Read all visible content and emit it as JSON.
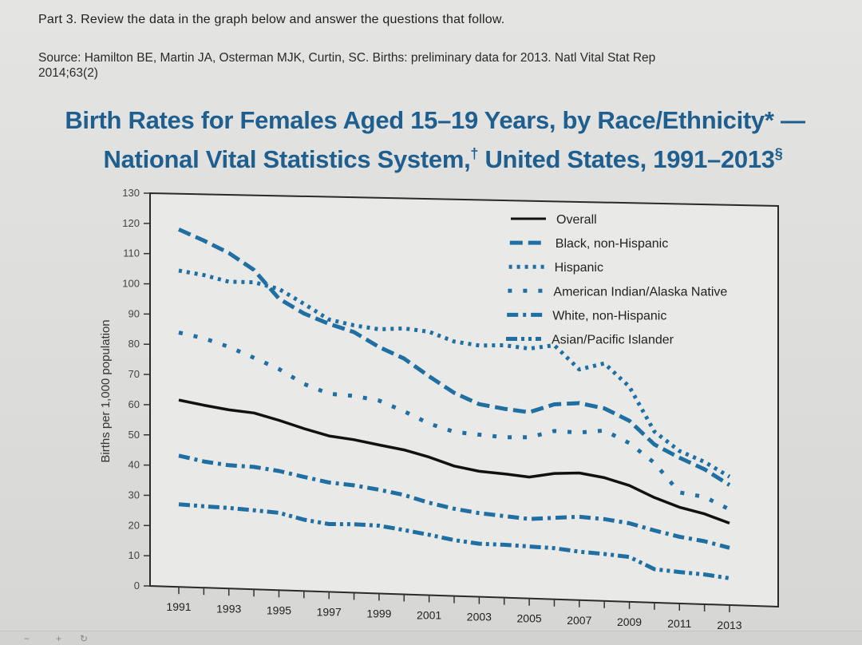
{
  "page": {
    "instruction": "Part 3. Review the data in the graph below and answer the questions that follow.",
    "source_line1": "Source: Hamilton BE, Martin JA, Osterman MJK, Curtin, SC. Births: preliminary data for 2013. Natl Vital Stat Rep",
    "source_line2": "2014;63(2)"
  },
  "toolbar": {
    "zoom_out_label": "−",
    "zoom_in_label": "+",
    "rotate_icon": "rotate-icon"
  },
  "chart_data": {
    "type": "line",
    "title_line1": "Birth Rates for Females Aged 15–19 Years, by Race/Ethnicity* —",
    "title_line2_main": "National Vital Statistics System,",
    "title_line2_dagger": "†",
    "title_line2_rest": " United States, 1991–2013",
    "title_line2_section": "§",
    "xlabel": "",
    "ylabel": "Births per 1,000 population",
    "ylim": [
      0,
      130
    ],
    "yticks": [
      0,
      10,
      20,
      30,
      40,
      50,
      60,
      70,
      80,
      90,
      100,
      110,
      120,
      130
    ],
    "xlim": [
      1991,
      2013
    ],
    "xtick_labels": [
      "1991",
      "1993",
      "1995",
      "1997",
      "1999",
      "2001",
      "2003",
      "2005",
      "2007",
      "2009",
      "2011",
      "2013"
    ],
    "grid": false,
    "legend_position": "top-right",
    "x": [
      1991,
      1992,
      1993,
      1994,
      1995,
      1996,
      1997,
      1998,
      1999,
      2000,
      2001,
      2002,
      2003,
      2004,
      2005,
      2006,
      2007,
      2008,
      2009,
      2010,
      2011,
      2012,
      2013
    ],
    "series": [
      {
        "name": "Overall",
        "style": "solid",
        "color": "#111111",
        "values": [
          61.8,
          60.3,
          59.0,
          58.2,
          56.0,
          53.5,
          51.3,
          50.3,
          48.8,
          47.4,
          45.3,
          42.6,
          41.1,
          40.5,
          39.7,
          41.1,
          41.5,
          40.2,
          37.9,
          34.2,
          31.3,
          29.4,
          26.6
        ]
      },
      {
        "name": "Black, non-Hispanic",
        "style": "dash",
        "color": "#1f6fa3",
        "values": [
          118.2,
          114.7,
          110.8,
          105.4,
          96.1,
          91.4,
          88.2,
          85.7,
          81.0,
          77.4,
          71.8,
          66.6,
          63.1,
          61.8,
          60.9,
          63.7,
          64.3,
          62.8,
          59.0,
          51.5,
          47.4,
          43.9,
          39.0
        ]
      },
      {
        "name": "Hispanic",
        "style": "dot",
        "color": "#1f6fa3",
        "values": [
          104.6,
          103.3,
          101.3,
          101.3,
          99.3,
          94.6,
          89.6,
          87.9,
          86.8,
          87.3,
          86.4,
          83.4,
          82.3,
          82.6,
          81.7,
          83.0,
          75.3,
          77.5,
          70.1,
          55.7,
          49.6,
          46.3,
          41.7
        ]
      },
      {
        "name": "American Indian/Alaska Native",
        "style": "sparse-dot",
        "color": "#1f6fa3",
        "values": [
          84.1,
          82.4,
          79.8,
          76.4,
          72.9,
          68.2,
          65.2,
          64.7,
          63.4,
          60.1,
          56.3,
          53.8,
          53.1,
          52.5,
          52.7,
          55.0,
          54.7,
          55.6,
          51.7,
          45.5,
          36.1,
          34.9,
          31.1
        ]
      },
      {
        "name": "White, non-Hispanic",
        "style": "dash-dot",
        "color": "#1f6fa3",
        "values": [
          43.4,
          41.7,
          40.7,
          40.4,
          39.3,
          37.6,
          36.0,
          35.3,
          34.1,
          32.6,
          30.3,
          28.6,
          27.4,
          26.7,
          26.0,
          26.6,
          27.2,
          26.7,
          25.6,
          23.5,
          21.7,
          20.5,
          18.6
        ]
      },
      {
        "name": "Asian/Pacific Islander",
        "style": "dash-dot-dot",
        "color": "#1f6fa3",
        "values": [
          27.3,
          26.9,
          26.6,
          26.1,
          25.5,
          23.5,
          22.3,
          22.5,
          22.3,
          21.1,
          19.8,
          18.3,
          17.4,
          17.3,
          17.0,
          16.7,
          15.8,
          15.3,
          14.6,
          10.9,
          10.2,
          9.7,
          8.7
        ]
      }
    ]
  }
}
